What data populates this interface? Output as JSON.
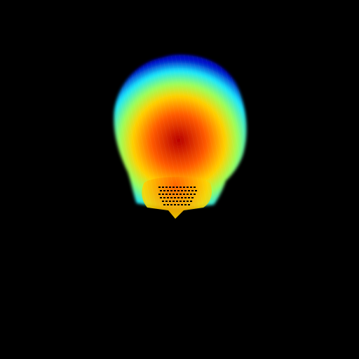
{
  "image": {
    "background": "#000000",
    "subject": "head-depth-map",
    "colormap": {
      "name": "jet",
      "near": "#b80000",
      "mid_high": "#ff5a00",
      "mid": "#ffd200",
      "mid_low": "#9cff5a",
      "low": "#18e8ff",
      "far": "#0010c8"
    }
  }
}
